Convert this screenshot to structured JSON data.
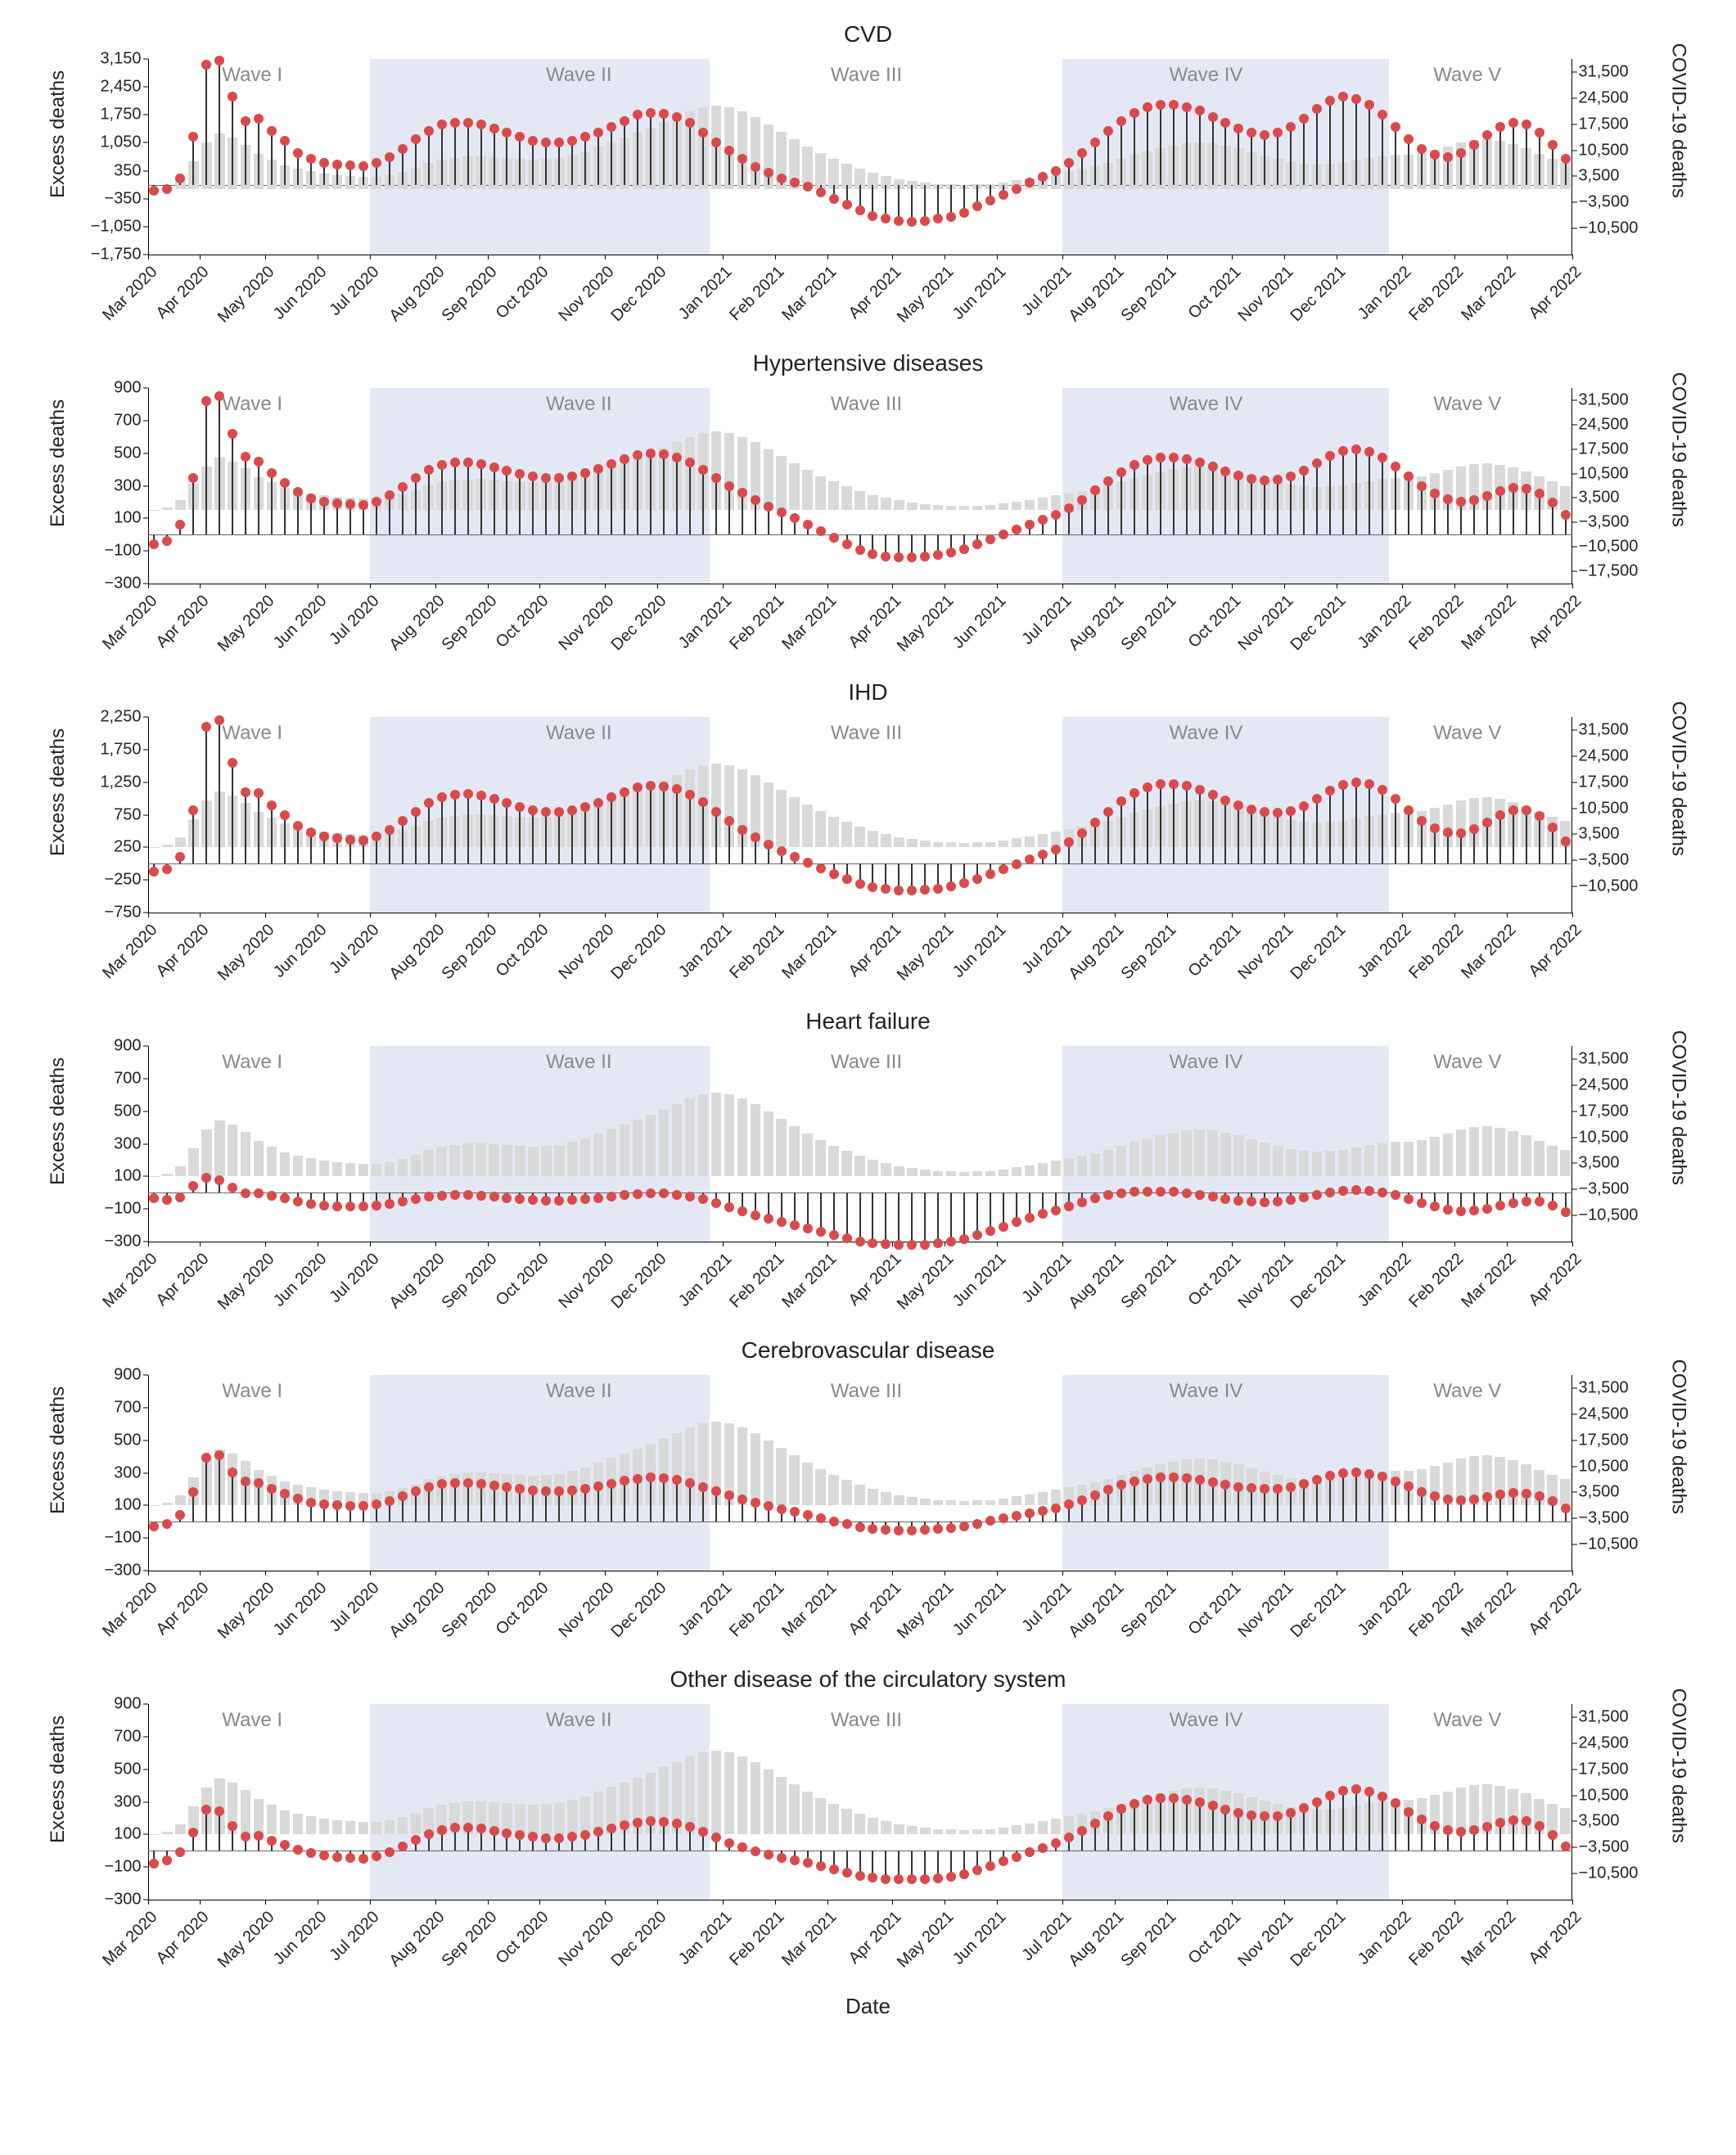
{
  "colors": {
    "background": "#ffffff",
    "bar": "#d9d9d9",
    "stem_line": "#333333",
    "stem_dot": "#d94a4a",
    "wave_band": "#e4e8f5",
    "wave_label": "#888888",
    "axis": "#000000",
    "zero_line": "#666666",
    "text": "#222222"
  },
  "fonts": {
    "title_pt": 28,
    "wave_label_pt": 24,
    "tick_pt": 20,
    "axis_label_pt": 24
  },
  "x": {
    "n_weeks": 109,
    "axis_title": "Date",
    "month_labels": [
      "Mar 2020",
      "Apr 2020",
      "May 2020",
      "Jun 2020",
      "Jul 2020",
      "Aug 2020",
      "Sep 2020",
      "Oct 2020",
      "Nov 2020",
      "Dec 2020",
      "Jan 2021",
      "Feb 2021",
      "Mar 2021",
      "Apr 2021",
      "May 2021",
      "Jun 2021",
      "Jul 2021",
      "Aug 2021",
      "Sep 2021",
      "Oct 2021",
      "Nov 2021",
      "Dec 2021",
      "Jan 2022",
      "Feb 2022",
      "Mar 2022",
      "Apr 2022"
    ],
    "month_positions_week": [
      0,
      4,
      9,
      13,
      17,
      22,
      26,
      30,
      35,
      39,
      44,
      48,
      52,
      57,
      61,
      65,
      70,
      74,
      78,
      83,
      87,
      91,
      96,
      100,
      104,
      109
    ]
  },
  "waves": {
    "labels": [
      "Wave I",
      "Wave II",
      "Wave III",
      "Wave IV",
      "Wave V"
    ],
    "band_indices": [
      1,
      3
    ],
    "label_centers_week": [
      8,
      33,
      55,
      81,
      101
    ],
    "spans_week": [
      [
        0,
        16
      ],
      [
        17,
        43
      ],
      [
        44,
        69
      ],
      [
        70,
        95
      ],
      [
        96,
        109
      ]
    ]
  },
  "right_axis": {
    "label": "COVID-19 deaths",
    "min": -17500,
    "max": 35000,
    "ticks": [
      -10500,
      -3500,
      3500,
      10500,
      17500,
      24500,
      31500
    ],
    "tick_labels": [
      "−10,500",
      "−3,500",
      "3,500",
      "10,500",
      "17,500",
      "24,500",
      "31,500"
    ]
  },
  "right_axis_hyp": {
    "label": "COVID-19 deaths",
    "min": -21000,
    "max": 35000,
    "ticks": [
      -17500,
      -10500,
      -3500,
      3500,
      10500,
      17500,
      24500,
      31500
    ],
    "tick_labels": [
      "−17,500",
      "−10,500",
      "−3,500",
      "3,500",
      "10,500",
      "17,500",
      "24,500",
      "31,500"
    ]
  },
  "covid_deaths": [
    150,
    700,
    2800,
    7500,
    12500,
    15000,
    14000,
    12000,
    9500,
    8000,
    6500,
    5500,
    4800,
    4200,
    3800,
    3500,
    3300,
    3400,
    3800,
    4600,
    5800,
    7200,
    8000,
    8500,
    8800,
    8900,
    8700,
    8400,
    8100,
    8000,
    8100,
    8500,
    9200,
    10200,
    11500,
    12800,
    14000,
    15200,
    16500,
    18000,
    19500,
    21000,
    22000,
    22500,
    22000,
    21000,
    19500,
    17500,
    15500,
    13500,
    11500,
    9800,
    8200,
    6800,
    5500,
    4400,
    3500,
    2800,
    2200,
    1800,
    1500,
    1300,
    1200,
    1300,
    1500,
    1900,
    2400,
    3000,
    3600,
    4200,
    4800,
    5500,
    6300,
    7200,
    8200,
    9200,
    10200,
    11100,
    11800,
    12300,
    12500,
    12300,
    11800,
    11000,
    10000,
    9000,
    8100,
    7300,
    6800,
    6600,
    6800,
    7200,
    7800,
    8400,
    8900,
    9200,
    9400,
    9800,
    10600,
    11600,
    12600,
    13200,
    13400,
    13000,
    12200,
    11000,
    9600,
    8200,
    7000
  ],
  "panels": [
    {
      "title": "CVD",
      "left_axis": {
        "label": "Excess deaths",
        "min": -1750,
        "max": 3150,
        "ticks": [
          -1750,
          -1050,
          -350,
          350,
          1050,
          1750,
          2450,
          3150
        ],
        "tick_labels": [
          "−1,750",
          "−1,050",
          "−350",
          "350",
          "1,050",
          "1,750",
          "2,450",
          "3,150"
        ]
      },
      "right_axis_key": "right_axis",
      "excess": [
        -150,
        -120,
        150,
        1200,
        3000,
        3100,
        2200,
        1600,
        1650,
        1350,
        1100,
        800,
        650,
        550,
        500,
        480,
        460,
        550,
        700,
        900,
        1150,
        1350,
        1500,
        1550,
        1550,
        1500,
        1400,
        1300,
        1200,
        1100,
        1050,
        1050,
        1100,
        1200,
        1300,
        1450,
        1600,
        1750,
        1800,
        1780,
        1700,
        1550,
        1300,
        1050,
        850,
        650,
        450,
        300,
        150,
        50,
        -50,
        -200,
        -350,
        -500,
        -650,
        -780,
        -850,
        -900,
        -920,
        -900,
        -850,
        -800,
        -700,
        -550,
        -400,
        -250,
        -100,
        50,
        200,
        350,
        550,
        800,
        1050,
        1350,
        1600,
        1800,
        1950,
        2000,
        2000,
        1950,
        1850,
        1700,
        1550,
        1400,
        1300,
        1250,
        1300,
        1450,
        1650,
        1900,
        2100,
        2200,
        2150,
        2000,
        1750,
        1450,
        1150,
        900,
        750,
        700,
        800,
        1000,
        1250,
        1450,
        1550,
        1500,
        1300,
        1000,
        650
      ]
    },
    {
      "title": "Hypertensive diseases",
      "left_axis": {
        "label": "Excess deaths",
        "min": -300,
        "max": 900,
        "ticks": [
          -300,
          -100,
          100,
          300,
          500,
          700,
          900
        ],
        "tick_labels": [
          "−300",
          "−100",
          "100",
          "300",
          "500",
          "700",
          "900"
        ]
      },
      "right_axis_key": "right_axis_hyp",
      "excess": [
        -60,
        -40,
        60,
        350,
        820,
        850,
        620,
        480,
        450,
        380,
        320,
        260,
        220,
        200,
        190,
        185,
        180,
        200,
        240,
        290,
        350,
        400,
        430,
        445,
        445,
        435,
        415,
        395,
        375,
        360,
        350,
        350,
        360,
        380,
        405,
        435,
        465,
        490,
        500,
        495,
        475,
        445,
        400,
        350,
        300,
        255,
        210,
        170,
        135,
        100,
        60,
        20,
        -20,
        -60,
        -95,
        -120,
        -135,
        -140,
        -140,
        -135,
        -125,
        -110,
        -90,
        -60,
        -30,
        0,
        30,
        60,
        90,
        120,
        160,
        210,
        270,
        330,
        385,
        430,
        460,
        475,
        475,
        465,
        445,
        420,
        390,
        365,
        345,
        335,
        340,
        360,
        395,
        440,
        485,
        515,
        525,
        510,
        475,
        420,
        360,
        300,
        250,
        215,
        200,
        210,
        235,
        265,
        285,
        280,
        250,
        195,
        120
      ]
    },
    {
      "title": "IHD",
      "left_axis": {
        "label": "Excess deaths",
        "min": -750,
        "max": 2250,
        "ticks": [
          -750,
          -250,
          250,
          750,
          1250,
          1750,
          2250
        ],
        "tick_labels": [
          "−750",
          "−250",
          "250",
          "750",
          "1,250",
          "1,750",
          "2,250"
        ]
      },
      "right_axis_key": "right_axis",
      "excess": [
        -120,
        -90,
        100,
        820,
        2100,
        2200,
        1550,
        1100,
        1080,
        900,
        740,
        580,
        480,
        420,
        390,
        370,
        360,
        420,
        520,
        650,
        800,
        930,
        1020,
        1060,
        1065,
        1040,
        990,
        930,
        870,
        820,
        790,
        790,
        820,
        870,
        935,
        1015,
        1095,
        1165,
        1200,
        1185,
        1140,
        1060,
        940,
        790,
        650,
        520,
        400,
        290,
        190,
        100,
        20,
        -70,
        -160,
        -240,
        -310,
        -360,
        -390,
        -405,
        -410,
        -400,
        -380,
        -350,
        -300,
        -230,
        -155,
        -80,
        -5,
        70,
        145,
        220,
        330,
        470,
        630,
        800,
        960,
        1085,
        1175,
        1220,
        1225,
        1195,
        1135,
        1060,
        975,
        900,
        835,
        790,
        780,
        810,
        885,
        1000,
        1120,
        1210,
        1250,
        1220,
        1130,
        990,
        820,
        660,
        540,
        475,
        470,
        525,
        630,
        740,
        815,
        815,
        730,
        560,
        340
      ]
    },
    {
      "title": "Heart failure",
      "left_axis": {
        "label": "Excess deaths",
        "min": -300,
        "max": 900,
        "ticks": [
          -300,
          -100,
          100,
          300,
          500,
          700,
          900
        ],
        "tick_labels": [
          "−300",
          "−100",
          "100",
          "300",
          "500",
          "700",
          "900"
        ]
      },
      "right_axis_key": "right_axis",
      "excess": [
        -35,
        -45,
        -30,
        40,
        90,
        75,
        30,
        -5,
        -5,
        -20,
        -35,
        -55,
        -70,
        -78,
        -82,
        -84,
        -85,
        -80,
        -70,
        -55,
        -38,
        -25,
        -18,
        -15,
        -15,
        -18,
        -25,
        -32,
        -40,
        -46,
        -50,
        -50,
        -46,
        -40,
        -32,
        -23,
        -15,
        -8,
        -5,
        -6,
        -12,
        -22,
        -40,
        -65,
        -90,
        -115,
        -140,
        -160,
        -180,
        -200,
        -218,
        -240,
        -260,
        -280,
        -298,
        -310,
        -316,
        -320,
        -320,
        -318,
        -312,
        -302,
        -285,
        -262,
        -235,
        -208,
        -180,
        -155,
        -130,
        -108,
        -82,
        -58,
        -35,
        -15,
        -2,
        5,
        8,
        8,
        5,
        -2,
        -12,
        -25,
        -37,
        -48,
        -55,
        -58,
        -55,
        -45,
        -30,
        -12,
        3,
        12,
        15,
        12,
        2,
        -15,
        -38,
        -62,
        -85,
        -103,
        -112,
        -110,
        -98,
        -80,
        -62,
        -52,
        -55,
        -78,
        -120
      ]
    },
    {
      "title": "Cerebrovascular disease",
      "left_axis": {
        "label": "Excess deaths",
        "min": -300,
        "max": 900,
        "ticks": [
          -300,
          -100,
          100,
          300,
          500,
          700,
          900
        ],
        "tick_labels": [
          "−300",
          "−100",
          "100",
          "300",
          "500",
          "700",
          "900"
        ]
      },
      "right_axis_key": "right_axis",
      "excess": [
        -30,
        -15,
        40,
        180,
        395,
        410,
        305,
        245,
        235,
        200,
        170,
        140,
        118,
        108,
        102,
        99,
        97,
        108,
        128,
        155,
        185,
        212,
        230,
        238,
        238,
        233,
        222,
        211,
        200,
        193,
        188,
        188,
        193,
        203,
        217,
        233,
        250,
        264,
        270,
        267,
        255,
        238,
        213,
        185,
        160,
        137,
        115,
        95,
        78,
        60,
        42,
        22,
        2,
        -16,
        -32,
        -44,
        -50,
        -53,
        -53,
        -51,
        -46,
        -38,
        -27,
        -12,
        4,
        20,
        36,
        52,
        68,
        84,
        105,
        132,
        163,
        195,
        225,
        248,
        264,
        272,
        272,
        266,
        256,
        242,
        227,
        214,
        205,
        200,
        202,
        214,
        232,
        256,
        280,
        296,
        301,
        294,
        275,
        246,
        215,
        182,
        155,
        137,
        130,
        136,
        150,
        166,
        177,
        174,
        156,
        125,
        80
      ]
    },
    {
      "title": "Other disease of the circulatory system",
      "left_axis": {
        "label": "Excess deaths",
        "min": -300,
        "max": 900,
        "ticks": [
          -300,
          -100,
          100,
          300,
          500,
          700,
          900
        ],
        "tick_labels": [
          "−300",
          "−100",
          "100",
          "300",
          "500",
          "700",
          "900"
        ]
      },
      "right_axis_key": "right_axis",
      "excess": [
        -80,
        -60,
        -10,
        110,
        250,
        240,
        150,
        85,
        90,
        60,
        35,
        5,
        -15,
        -30,
        -40,
        -45,
        -48,
        -35,
        -10,
        25,
        65,
        100,
        125,
        140,
        142,
        135,
        122,
        108,
        95,
        85,
        78,
        78,
        85,
        98,
        115,
        135,
        155,
        172,
        180,
        178,
        165,
        145,
        115,
        80,
        48,
        20,
        -5,
        -25,
        -42,
        -58,
        -75,
        -95,
        -115,
        -135,
        -152,
        -165,
        -172,
        -175,
        -176,
        -174,
        -168,
        -158,
        -142,
        -118,
        -92,
        -65,
        -38,
        -10,
        18,
        45,
        80,
        120,
        165,
        212,
        255,
        288,
        312,
        322,
        322,
        313,
        297,
        275,
        252,
        232,
        218,
        210,
        214,
        230,
        260,
        300,
        340,
        368,
        378,
        365,
        335,
        290,
        238,
        190,
        150,
        125,
        116,
        125,
        145,
        170,
        185,
        180,
        150,
        98,
        25
      ]
    }
  ]
}
